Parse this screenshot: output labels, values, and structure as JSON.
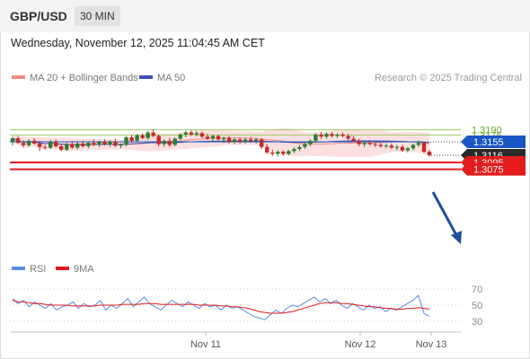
{
  "header": {
    "pair": "GBP/USD",
    "timeframe": "30 MIN"
  },
  "datetime": "Wednesday, November 12, 2025 11:04:45 AM CET",
  "legend": {
    "bb_label": "MA 20 + Bollinger Bands",
    "ma50_label": "MA 50",
    "copyright": "Research © 2025 Trading Central",
    "rsi_label": "RSI",
    "rsi9_label": "9MA"
  },
  "colors": {
    "up": "#2e7d32",
    "down": "#c62828",
    "bb_fill": "#fcdada",
    "bb_line": "#f28b82",
    "ma50": "#3f51b5",
    "resistance": "#9ccc65",
    "support": "#e31b1b",
    "pivot": "#1a56c4",
    "current": "#2a2a2a",
    "arrow": "#1f4e9c",
    "rsi": "#5b8de8",
    "rsi9": "#e31b1b"
  },
  "chart_data": {
    "type": "candlestick",
    "x_ticks": [
      "Nov 11",
      "Nov 12",
      "Nov 13"
    ],
    "y_ticks_rsi": [
      "70",
      "50",
      "30"
    ],
    "levels": [
      {
        "value": "1.3190",
        "kind": "resistance"
      },
      {
        "value": "1.3175",
        "kind": "resistance"
      },
      {
        "value": "1.3155",
        "kind": "pivot"
      },
      {
        "value": "1.3116",
        "kind": "current"
      },
      {
        "value": "1.3095",
        "kind": "support"
      },
      {
        "value": "1.3075",
        "kind": "support"
      }
    ],
    "last_price": 1.3116,
    "candles": [
      [
        1.3155,
        1.317,
        1.3145,
        1.3165
      ],
      [
        1.3165,
        1.3172,
        1.315,
        1.3152
      ],
      [
        1.3152,
        1.316,
        1.3138,
        1.3145
      ],
      [
        1.3145,
        1.3162,
        1.314,
        1.3158
      ],
      [
        1.3158,
        1.3166,
        1.3146,
        1.315
      ],
      [
        1.315,
        1.3158,
        1.3128,
        1.314
      ],
      [
        1.314,
        1.3146,
        1.3132,
        1.3138
      ],
      [
        1.3138,
        1.316,
        1.3134,
        1.3155
      ],
      [
        1.3155,
        1.3162,
        1.3138,
        1.3142
      ],
      [
        1.3142,
        1.315,
        1.3128,
        1.3132
      ],
      [
        1.3132,
        1.3152,
        1.3128,
        1.3148
      ],
      [
        1.3148,
        1.3158,
        1.3134,
        1.3138
      ],
      [
        1.3138,
        1.3154,
        1.3132,
        1.315
      ],
      [
        1.315,
        1.3158,
        1.3138,
        1.3142
      ],
      [
        1.3142,
        1.3156,
        1.3136,
        1.3152
      ],
      [
        1.3152,
        1.3162,
        1.3142,
        1.3146
      ],
      [
        1.3146,
        1.3158,
        1.314,
        1.3155
      ],
      [
        1.3155,
        1.3162,
        1.3144,
        1.3148
      ],
      [
        1.3148,
        1.316,
        1.314,
        1.3156
      ],
      [
        1.3156,
        1.3162,
        1.314,
        1.3144
      ],
      [
        1.3144,
        1.315,
        1.3136,
        1.3146
      ],
      [
        1.3146,
        1.3172,
        1.3142,
        1.3168
      ],
      [
        1.3168,
        1.3176,
        1.3152,
        1.3158
      ],
      [
        1.3158,
        1.3178,
        1.3154,
        1.3174
      ],
      [
        1.3174,
        1.318,
        1.3162,
        1.3166
      ],
      [
        1.3166,
        1.3186,
        1.316,
        1.3182
      ],
      [
        1.3182,
        1.3192,
        1.3168,
        1.3172
      ],
      [
        1.3172,
        1.3176,
        1.3142,
        1.3148
      ],
      [
        1.3148,
        1.3162,
        1.314,
        1.3158
      ],
      [
        1.3158,
        1.3166,
        1.314,
        1.3146
      ],
      [
        1.3146,
        1.3168,
        1.3142,
        1.3164
      ],
      [
        1.3164,
        1.318,
        1.316,
        1.3176
      ],
      [
        1.3176,
        1.3186,
        1.3168,
        1.3182
      ],
      [
        1.3182,
        1.3188,
        1.3172,
        1.3176
      ],
      [
        1.3176,
        1.3186,
        1.317,
        1.318
      ],
      [
        1.318,
        1.3184,
        1.3166,
        1.317
      ],
      [
        1.317,
        1.3178,
        1.316,
        1.3164
      ],
      [
        1.3164,
        1.3176,
        1.3158,
        1.3172
      ],
      [
        1.3172,
        1.3176,
        1.3158,
        1.3162
      ],
      [
        1.3162,
        1.317,
        1.3152,
        1.3166
      ],
      [
        1.3166,
        1.3172,
        1.315,
        1.3154
      ],
      [
        1.3154,
        1.3166,
        1.3148,
        1.3162
      ],
      [
        1.3162,
        1.3168,
        1.315,
        1.3155
      ],
      [
        1.3155,
        1.3166,
        1.315,
        1.3162
      ],
      [
        1.3162,
        1.317,
        1.3152,
        1.3158
      ],
      [
        1.3158,
        1.3166,
        1.315,
        1.3162
      ],
      [
        1.3162,
        1.3166,
        1.3134,
        1.314
      ],
      [
        1.314,
        1.3148,
        1.312,
        1.3124
      ],
      [
        1.3124,
        1.3132,
        1.3114,
        1.312
      ],
      [
        1.312,
        1.313,
        1.3112,
        1.3126
      ],
      [
        1.3126,
        1.313,
        1.3114,
        1.312
      ],
      [
        1.312,
        1.3132,
        1.3116,
        1.3128
      ],
      [
        1.3128,
        1.314,
        1.3122,
        1.3134
      ],
      [
        1.3134,
        1.3146,
        1.3128,
        1.314
      ],
      [
        1.314,
        1.3154,
        1.3134,
        1.3148
      ],
      [
        1.3148,
        1.3162,
        1.3142,
        1.3158
      ],
      [
        1.3158,
        1.318,
        1.3152,
        1.3176
      ],
      [
        1.3176,
        1.3184,
        1.3164,
        1.317
      ],
      [
        1.317,
        1.3182,
        1.3164,
        1.3178
      ],
      [
        1.3178,
        1.3184,
        1.3168,
        1.3172
      ],
      [
        1.3172,
        1.318,
        1.3166,
        1.3176
      ],
      [
        1.3176,
        1.3182,
        1.3168,
        1.3172
      ],
      [
        1.3172,
        1.3178,
        1.316,
        1.3164
      ],
      [
        1.3164,
        1.3172,
        1.3154,
        1.3158
      ],
      [
        1.3158,
        1.3164,
        1.3142,
        1.3148
      ],
      [
        1.3148,
        1.3156,
        1.314,
        1.3152
      ],
      [
        1.3152,
        1.316,
        1.3144,
        1.3148
      ],
      [
        1.3148,
        1.3154,
        1.314,
        1.3146
      ],
      [
        1.3146,
        1.3152,
        1.3138,
        1.3142
      ],
      [
        1.3142,
        1.315,
        1.3136,
        1.3144
      ],
      [
        1.3144,
        1.315,
        1.3134,
        1.3138
      ],
      [
        1.3138,
        1.3146,
        1.313,
        1.314
      ],
      [
        1.314,
        1.3146,
        1.3126,
        1.313
      ],
      [
        1.313,
        1.314,
        1.3124,
        1.3136
      ],
      [
        1.3136,
        1.315,
        1.313,
        1.3146
      ],
      [
        1.3146,
        1.3158,
        1.314,
        1.3152
      ],
      [
        1.3152,
        1.3156,
        1.3122,
        1.3126
      ],
      [
        1.3126,
        1.3132,
        1.3112,
        1.3116
      ]
    ],
    "rsi": [
      58,
      52,
      56,
      48,
      54,
      50,
      46,
      52,
      44,
      48,
      50,
      54,
      46,
      52,
      48,
      50,
      56,
      44,
      50,
      46,
      52,
      58,
      48,
      54,
      60,
      52,
      48,
      44,
      50,
      56,
      52,
      48,
      54,
      50,
      46,
      52,
      48,
      50,
      44,
      50,
      46,
      48,
      44,
      40,
      36,
      34,
      32,
      38,
      44,
      40,
      46,
      50,
      48,
      52,
      56,
      60,
      54,
      58,
      52,
      56,
      50,
      46,
      52,
      48,
      44,
      50,
      46,
      48,
      42,
      46,
      44,
      48,
      52,
      56,
      62,
      40,
      36
    ],
    "rsi9": [
      56,
      54,
      54,
      53,
      52,
      52,
      51,
      50,
      50,
      50,
      50,
      49,
      49,
      49,
      49,
      49,
      50,
      50,
      50,
      50,
      51,
      51,
      51,
      51,
      52,
      52,
      52,
      51,
      51,
      51,
      51,
      51,
      51,
      51,
      50,
      50,
      50,
      50,
      49,
      49,
      48,
      48,
      47,
      46,
      44,
      42,
      41,
      40,
      40,
      40,
      41,
      42,
      44,
      46,
      48,
      50,
      52,
      53,
      53,
      53,
      52,
      52,
      51,
      50,
      49,
      48,
      48,
      47,
      46,
      46,
      45,
      45,
      46,
      46,
      47,
      46,
      45
    ]
  }
}
